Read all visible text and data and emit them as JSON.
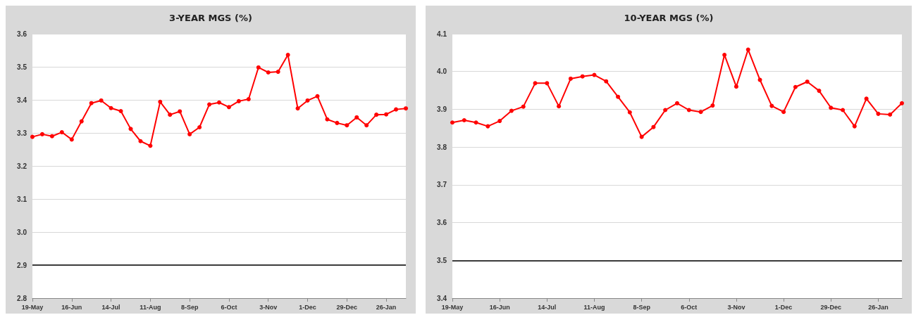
{
  "chart_data": [
    {
      "type": "line",
      "title": "3-YEAR MGS (%)",
      "categories": [
        "19-May",
        null,
        null,
        null,
        "16-Jun",
        null,
        null,
        null,
        "14-Jul",
        null,
        null,
        null,
        "11-Aug",
        null,
        null,
        null,
        "8-Sep",
        null,
        null,
        null,
        "6-Oct",
        null,
        null,
        null,
        "3-Nov",
        null,
        null,
        null,
        "1-Dec",
        null,
        null,
        null,
        "29-Dec",
        null,
        null,
        null,
        "26-Jan",
        null,
        null
      ],
      "series": [
        {
          "color": "#ff0000",
          "values": [
            3.288,
            3.296,
            3.29,
            3.302,
            3.28,
            3.335,
            3.39,
            3.398,
            3.375,
            3.366,
            3.312,
            3.275,
            3.261,
            3.394,
            3.355,
            3.365,
            3.296,
            3.317,
            3.386,
            3.392,
            3.378,
            3.396,
            3.402,
            3.498,
            3.483,
            3.485,
            3.536,
            3.374,
            3.398,
            3.411,
            3.341,
            3.33,
            3.323,
            3.347,
            3.323,
            3.355,
            3.356,
            3.371,
            3.374
          ]
        }
      ],
      "ylim": [
        2.8,
        3.6
      ],
      "yticks": [
        2.8,
        2.9,
        {
          "value": 3,
          "label": "3.0"
        },
        3.1,
        3.2,
        3.3,
        3.4,
        3.5,
        3.6
      ],
      "grid": "y",
      "marker": "circle",
      "line_style": "solid",
      "ref_lines": [
        {
          "axis": "y",
          "value": 2.9,
          "color": "#000000"
        }
      ]
    },
    {
      "type": "line",
      "title": "10-YEAR MGS (%)",
      "categories": [
        "19-May",
        null,
        null,
        null,
        "16-Jun",
        null,
        null,
        null,
        "14-Jul",
        null,
        null,
        null,
        "11-Aug",
        null,
        null,
        null,
        "8-Sep",
        null,
        null,
        null,
        "6-Oct",
        null,
        null,
        null,
        "3-Nov",
        null,
        null,
        null,
        "1-Dec",
        null,
        null,
        null,
        "29-Dec",
        null,
        null,
        null,
        "26-Jan",
        null,
        null
      ],
      "series": [
        {
          "color": "#ff0000",
          "values": [
            3.865,
            3.871,
            3.865,
            3.855,
            3.869,
            3.896,
            3.907,
            3.969,
            3.969,
            3.908,
            3.981,
            3.987,
            3.991,
            3.974,
            3.933,
            3.892,
            3.827,
            3.853,
            3.898,
            3.916,
            3.898,
            3.893,
            3.91,
            4.044,
            3.96,
            4.058,
            3.978,
            3.909,
            3.893,
            3.959,
            3.973,
            3.949,
            3.904,
            3.898,
            3.855,
            3.928,
            3.888,
            3.886,
            3.916
          ]
        }
      ],
      "ylim": [
        3.4,
        4.1
      ],
      "yticks": [
        3.4,
        3.5,
        3.6,
        3.7,
        3.8,
        3.9,
        {
          "value": 4,
          "label": "4.0"
        },
        4.1
      ],
      "grid": "y",
      "marker": "circle",
      "line_style": "solid",
      "ref_lines": [
        {
          "axis": "y",
          "value": 3.5,
          "color": "#000000"
        }
      ]
    }
  ]
}
